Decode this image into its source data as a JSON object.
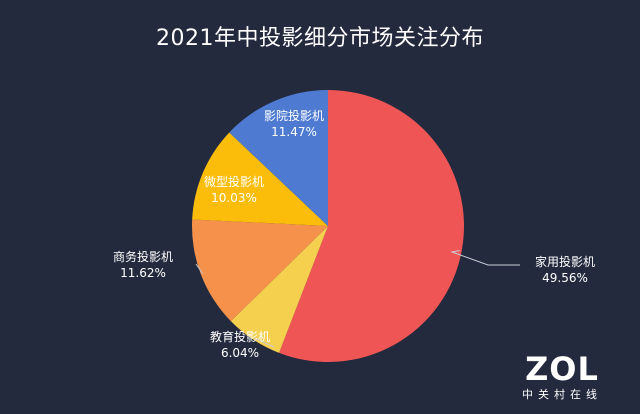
{
  "chart_data": {
    "type": "pie",
    "title": "2021年中投影细分市场关注分布",
    "slices": [
      {
        "name": "家用投影机",
        "value": 49.56,
        "value_label": "49.56%",
        "color": "#f05555"
      },
      {
        "name": "教育投影机",
        "value": 6.04,
        "value_label": "6.04%",
        "color": "#f5d04f"
      },
      {
        "name": "商务投影机",
        "value": 11.62,
        "value_label": "11.62%",
        "color": "#f5914a"
      },
      {
        "name": "微型投影机",
        "value": 10.03,
        "value_label": "10.03%",
        "color": "#fbbd0a"
      },
      {
        "name": "影院投影机",
        "value": 11.47,
        "value_label": "11.47%",
        "color": "#4e7bd1"
      }
    ]
  },
  "logo": {
    "main": "ZOL",
    "sub": "中关村在线"
  }
}
